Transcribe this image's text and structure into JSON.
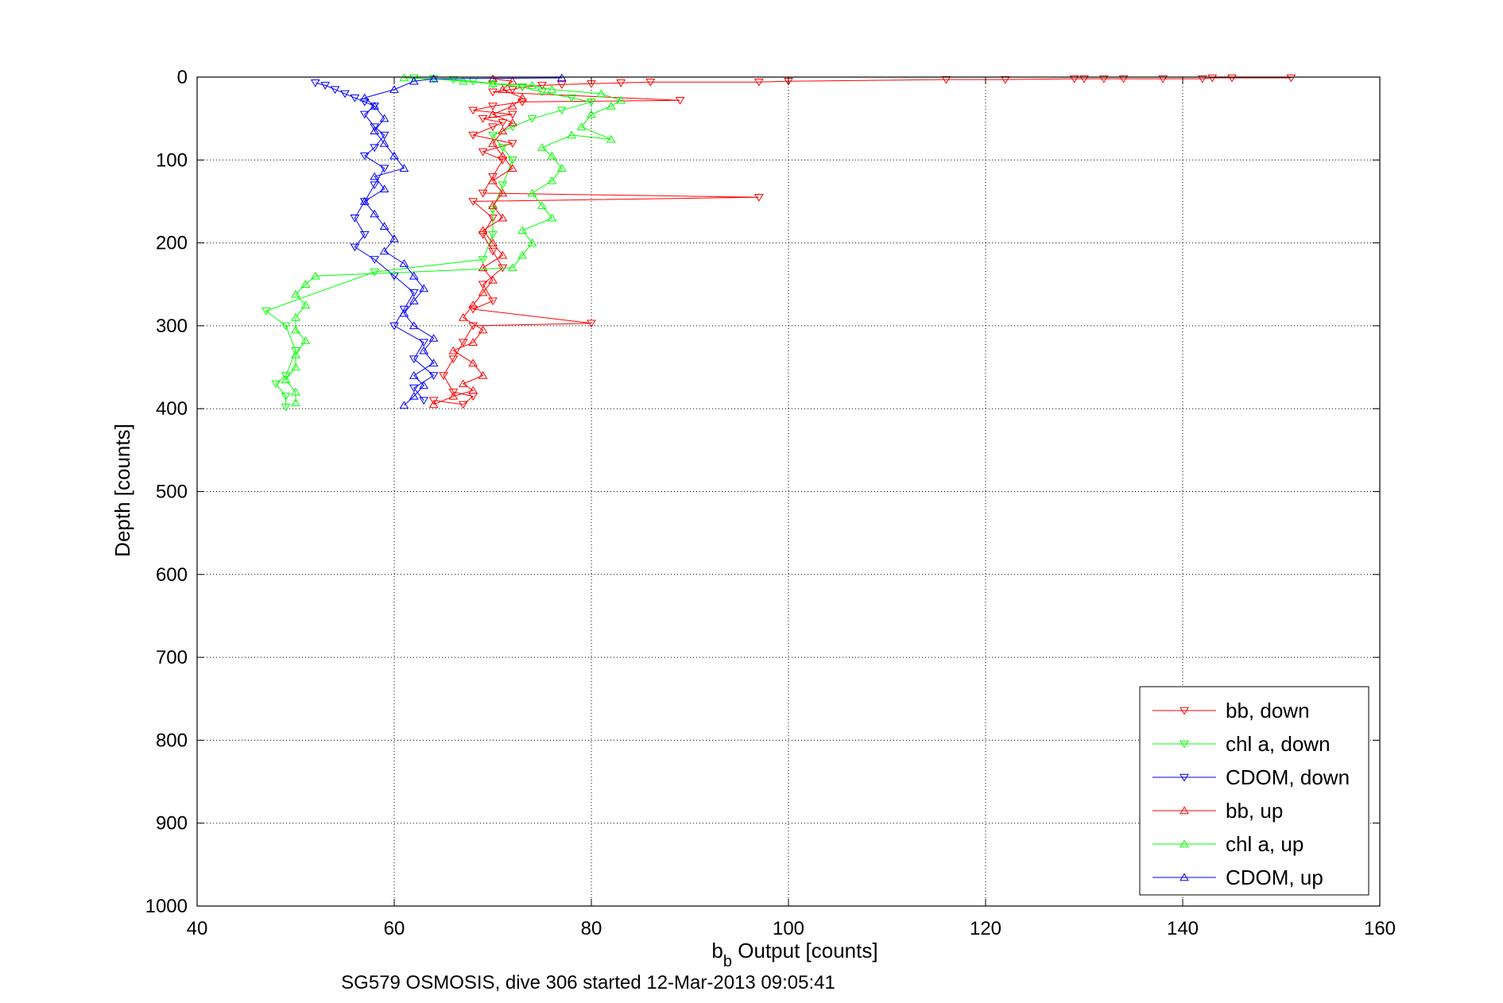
{
  "chart_data": {
    "type": "scatter",
    "title": "",
    "xlabel_main": "b",
    "xlabel_sub": "b",
    "xlabel_rest": " Output [counts]",
    "ylabel": "Depth [counts]",
    "footer": "SG579 OSMOSIS, dive 306 started 12-Mar-2013 09:05:41",
    "xlim": [
      40,
      160
    ],
    "ylim": [
      0,
      1000
    ],
    "y_reversed": true,
    "grid": true,
    "legend_position": "bottom-right",
    "x_ticks": [
      "40",
      "60",
      "80",
      "100",
      "120",
      "140",
      "160"
    ],
    "y_ticks": [
      "0",
      "100",
      "200",
      "300",
      "400",
      "500",
      "600",
      "700",
      "800",
      "900",
      "1000"
    ],
    "series": [
      {
        "name": "bb, down",
        "color": "#ff0000",
        "marker": "triangle-down",
        "points": [
          [
            151,
            1
          ],
          [
            145,
            1
          ],
          [
            143,
            1
          ],
          [
            142,
            2
          ],
          [
            138,
            2
          ],
          [
            134,
            2
          ],
          [
            132,
            2
          ],
          [
            130,
            2
          ],
          [
            129,
            2
          ],
          [
            122,
            3
          ],
          [
            116,
            3
          ],
          [
            100,
            5
          ],
          [
            97,
            6
          ],
          [
            86,
            6
          ],
          [
            83,
            7
          ],
          [
            80,
            8
          ],
          [
            77,
            9
          ],
          [
            75,
            10
          ],
          [
            73,
            12
          ],
          [
            72,
            15
          ],
          [
            70,
            18
          ],
          [
            89,
            28
          ],
          [
            73,
            30
          ],
          [
            70,
            35
          ],
          [
            68,
            40
          ],
          [
            72,
            45
          ],
          [
            69,
            50
          ],
          [
            71,
            55
          ],
          [
            70,
            60
          ],
          [
            68,
            70
          ],
          [
            72,
            80
          ],
          [
            69,
            90
          ],
          [
            71,
            100
          ],
          [
            70,
            120
          ],
          [
            69,
            140
          ],
          [
            97,
            145
          ],
          [
            68,
            150
          ],
          [
            70,
            170
          ],
          [
            69,
            190
          ],
          [
            70,
            210
          ],
          [
            71,
            230
          ],
          [
            69,
            250
          ],
          [
            70,
            270
          ],
          [
            68,
            280
          ],
          [
            80,
            297
          ],
          [
            68,
            300
          ],
          [
            67,
            320
          ],
          [
            66,
            340
          ],
          [
            65,
            360
          ],
          [
            66,
            380
          ],
          [
            68,
            385
          ],
          [
            67,
            395
          ],
          [
            64,
            390
          ]
        ]
      },
      {
        "name": "chl a, down",
        "color": "#00ff00",
        "marker": "triangle-down",
        "points": [
          [
            62,
            1
          ],
          [
            64,
            2
          ],
          [
            66,
            3
          ],
          [
            68,
            5
          ],
          [
            70,
            8
          ],
          [
            73,
            12
          ],
          [
            75,
            18
          ],
          [
            78,
            25
          ],
          [
            80,
            30
          ],
          [
            77,
            40
          ],
          [
            74,
            50
          ],
          [
            72,
            60
          ],
          [
            70,
            70
          ],
          [
            71,
            85
          ],
          [
            72,
            100
          ],
          [
            71,
            130
          ],
          [
            70,
            160
          ],
          [
            70,
            190
          ],
          [
            69,
            220
          ],
          [
            58,
            235
          ],
          [
            47,
            282
          ],
          [
            49,
            300
          ],
          [
            50,
            330
          ],
          [
            49,
            360
          ],
          [
            48,
            370
          ],
          [
            49,
            385
          ],
          [
            49,
            398
          ]
        ]
      },
      {
        "name": "CDOM, down",
        "color": "#0000ff",
        "marker": "triangle-down",
        "points": [
          [
            52,
            7
          ],
          [
            53,
            10
          ],
          [
            54,
            15
          ],
          [
            55,
            20
          ],
          [
            56,
            25
          ],
          [
            57,
            30
          ],
          [
            58,
            35
          ],
          [
            57,
            45
          ],
          [
            58,
            60
          ],
          [
            59,
            70
          ],
          [
            58,
            85
          ],
          [
            57,
            95
          ],
          [
            59,
            110
          ],
          [
            58,
            130
          ],
          [
            57,
            150
          ],
          [
            56,
            170
          ],
          [
            57,
            190
          ],
          [
            56,
            205
          ],
          [
            58,
            220
          ],
          [
            60,
            240
          ],
          [
            62,
            260
          ],
          [
            61,
            280
          ],
          [
            60,
            300
          ],
          [
            63,
            320
          ],
          [
            62,
            340
          ],
          [
            64,
            360
          ],
          [
            62,
            375
          ],
          [
            63,
            390
          ]
        ]
      },
      {
        "name": "bb, up",
        "color": "#ff0000",
        "marker": "triangle-up",
        "points": [
          [
            64,
            395
          ],
          [
            66,
            385
          ],
          [
            68,
            378
          ],
          [
            67,
            370
          ],
          [
            69,
            360
          ],
          [
            68,
            345
          ],
          [
            66,
            330
          ],
          [
            68,
            320
          ],
          [
            69,
            305
          ],
          [
            67,
            290
          ],
          [
            68,
            275
          ],
          [
            69,
            260
          ],
          [
            70,
            245
          ],
          [
            69,
            230
          ],
          [
            71,
            215
          ],
          [
            70,
            200
          ],
          [
            69,
            185
          ],
          [
            71,
            170
          ],
          [
            70,
            155
          ],
          [
            71,
            140
          ],
          [
            70,
            125
          ],
          [
            72,
            110
          ],
          [
            71,
            95
          ],
          [
            70,
            80
          ],
          [
            71,
            65
          ],
          [
            72,
            55
          ],
          [
            70,
            45
          ],
          [
            72,
            35
          ],
          [
            73,
            25
          ],
          [
            71,
            15
          ],
          [
            72,
            5
          ],
          [
            70,
            2
          ]
        ]
      },
      {
        "name": "chl a, up",
        "color": "#00ff00",
        "marker": "triangle-up",
        "points": [
          [
            50,
            393
          ],
          [
            50,
            380
          ],
          [
            49,
            365
          ],
          [
            50,
            350
          ],
          [
            50,
            335
          ],
          [
            51,
            318
          ],
          [
            50,
            305
          ],
          [
            50,
            290
          ],
          [
            51,
            275
          ],
          [
            50,
            262
          ],
          [
            51,
            250
          ],
          [
            52,
            240
          ],
          [
            72,
            230
          ],
          [
            73,
            215
          ],
          [
            74,
            200
          ],
          [
            73,
            185
          ],
          [
            76,
            170
          ],
          [
            75,
            155
          ],
          [
            74,
            140
          ],
          [
            76,
            125
          ],
          [
            77,
            110
          ],
          [
            76,
            95
          ],
          [
            75,
            85
          ],
          [
            78,
            70
          ],
          [
            82,
            75
          ],
          [
            79,
            60
          ],
          [
            80,
            45
          ],
          [
            82,
            35
          ],
          [
            83,
            28
          ],
          [
            81,
            20
          ],
          [
            76,
            15
          ],
          [
            74,
            10
          ],
          [
            70,
            8
          ],
          [
            67,
            5
          ],
          [
            64,
            2
          ],
          [
            61,
            1
          ]
        ]
      },
      {
        "name": "CDOM, up",
        "color": "#0000ff",
        "marker": "triangle-up",
        "points": [
          [
            61,
            396
          ],
          [
            62,
            385
          ],
          [
            63,
            372
          ],
          [
            62,
            360
          ],
          [
            64,
            345
          ],
          [
            63,
            330
          ],
          [
            64,
            315
          ],
          [
            62,
            300
          ],
          [
            61,
            285
          ],
          [
            62,
            270
          ],
          [
            63,
            255
          ],
          [
            62,
            240
          ],
          [
            61,
            225
          ],
          [
            59,
            210
          ],
          [
            60,
            195
          ],
          [
            59,
            180
          ],
          [
            58,
            165
          ],
          [
            57,
            150
          ],
          [
            59,
            135
          ],
          [
            58,
            120
          ],
          [
            61,
            110
          ],
          [
            60,
            95
          ],
          [
            59,
            80
          ],
          [
            58,
            65
          ],
          [
            59,
            50
          ],
          [
            58,
            35
          ],
          [
            57,
            25
          ],
          [
            60,
            15
          ],
          [
            62,
            5
          ],
          [
            64,
            2
          ],
          [
            77,
            1
          ]
        ]
      }
    ]
  }
}
